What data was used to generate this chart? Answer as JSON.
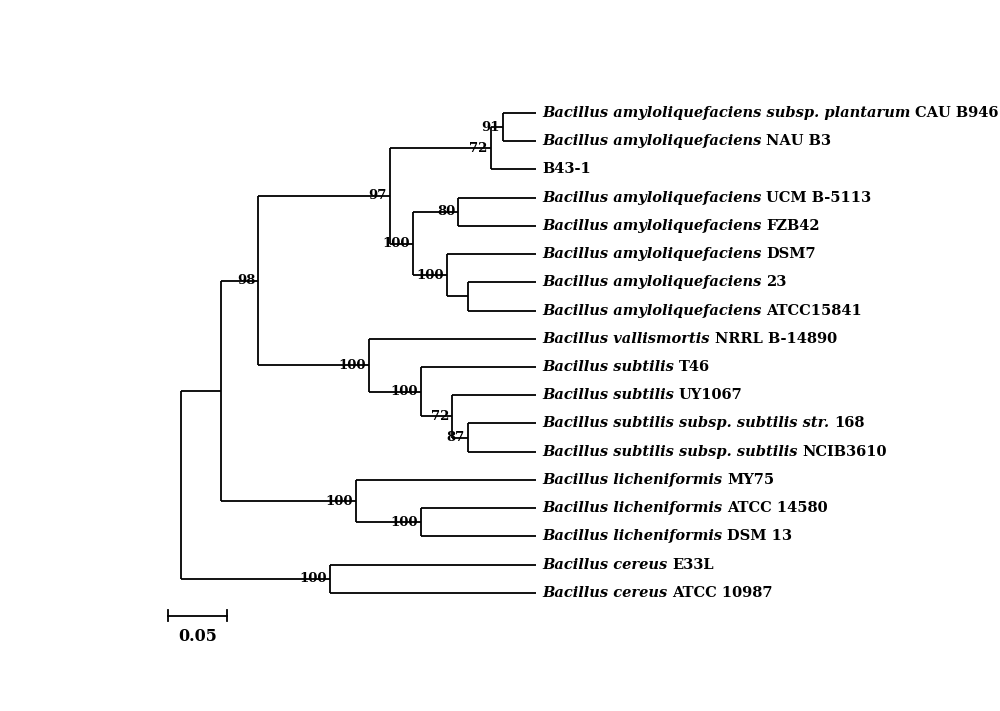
{
  "bg_color": "#ffffff",
  "line_color": "#000000",
  "lw": 1.3,
  "scale_bar_value": "0.05",
  "taxa_italic": [
    "Bacillus amyloliquefaciens subsp. plantarum",
    "Bacillus amyloliquefaciens",
    "",
    "Bacillus amyloliquefaciens",
    "Bacillus amyloliquefaciens",
    "Bacillus amyloliquefaciens",
    "Bacillus amyloliquefaciens",
    "Bacillus amyloliquefaciens",
    "Bacillus vallismortis",
    "Bacillus subtilis",
    "Bacillus subtilis",
    "Bacillus subtilis subsp. subtilis str.",
    "Bacillus subtilis subsp. subtilis",
    "Bacillus licheniformis",
    "Bacillus licheniformis",
    "Bacillus licheniformis",
    "Bacillus cereus",
    "Bacillus cereus"
  ],
  "taxa_bold": [
    "CAU B946",
    "NAU B3",
    "B43-1",
    "UCM B-5113",
    "FZB42",
    "DSM7",
    "23",
    "ATCC15841",
    "NRRL B-14890",
    "T46",
    "UY1067",
    "168",
    "NCIB3610",
    "MY75",
    "ATCC 14580",
    "DSM 13",
    "E33L",
    "ATCC 10987"
  ],
  "bootstrap_labels": [
    {
      "text": "91",
      "node": "A"
    },
    {
      "text": "72",
      "node": "B"
    },
    {
      "text": "97",
      "node": "H"
    },
    {
      "text": "100",
      "node": "G"
    },
    {
      "text": "80",
      "node": "C"
    },
    {
      "text": "100",
      "node": "F"
    },
    {
      "text": "98",
      "node": "Q"
    },
    {
      "text": "100",
      "node": "M"
    },
    {
      "text": "100",
      "node": "L"
    },
    {
      "text": "72",
      "node": "K"
    },
    {
      "text": "87",
      "node": "J"
    },
    {
      "text": "100",
      "node": "O"
    },
    {
      "text": "100",
      "node": "N"
    },
    {
      "text": "100",
      "node": "P"
    }
  ]
}
